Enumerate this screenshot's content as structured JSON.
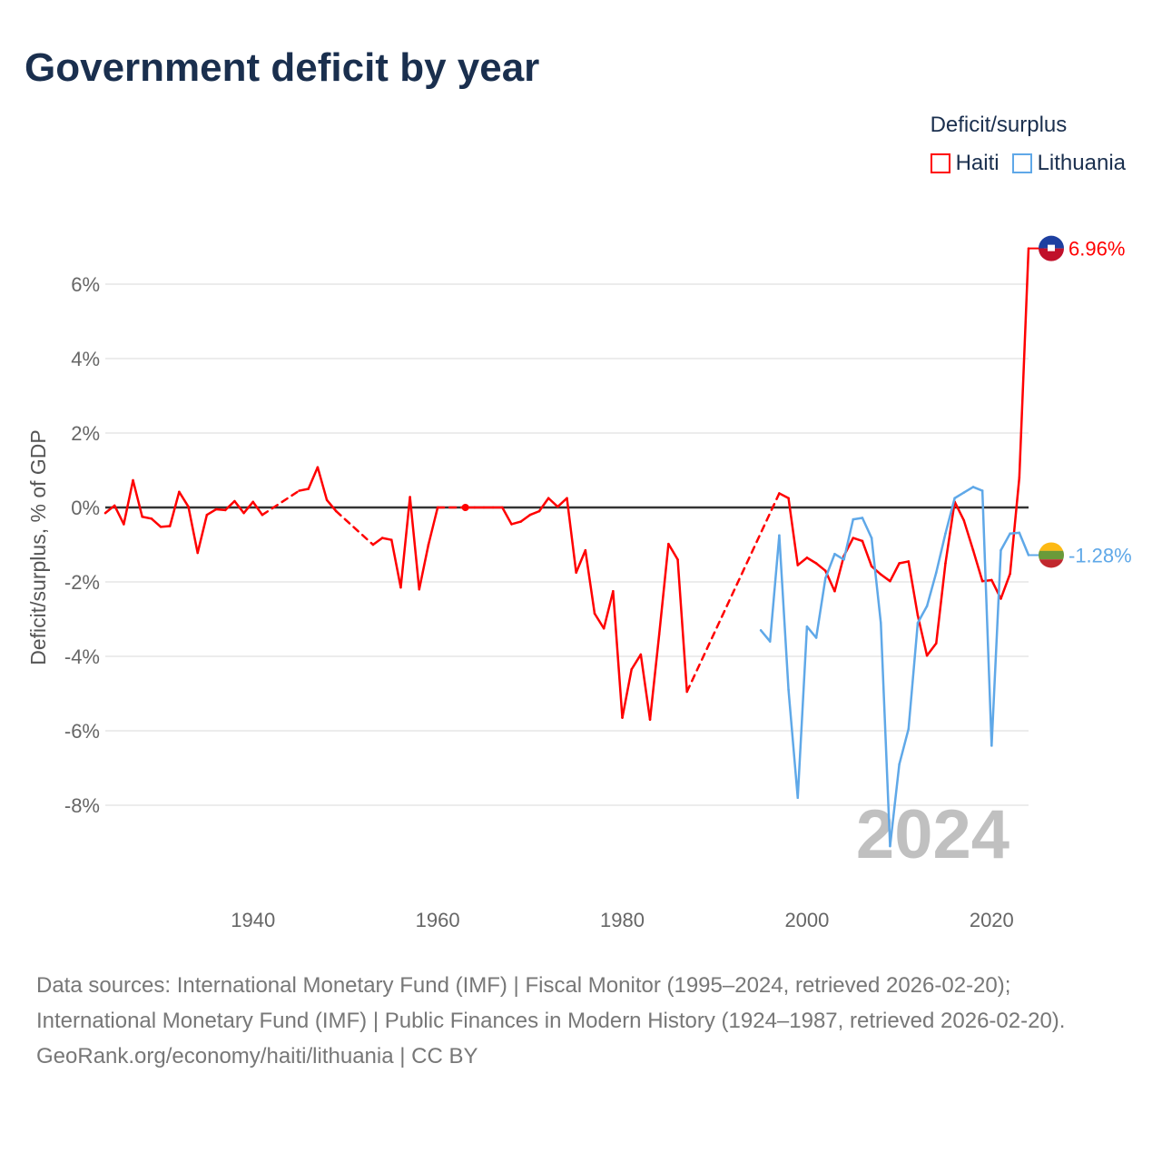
{
  "chart_data": {
    "type": "line",
    "title": "Government deficit by year",
    "ylabel": "Deficit/surplus, % of GDP",
    "xlabel": "",
    "ylim": [
      -10,
      7.2
    ],
    "xlim": [
      1924,
      2024
    ],
    "yticks": [
      6,
      4,
      2,
      0,
      -2,
      -4,
      -6,
      -8
    ],
    "ytick_labels": [
      "6%",
      "4%",
      "2%",
      "0%",
      "-2%",
      "-4%",
      "-6%",
      "-8%"
    ],
    "xticks": [
      1940,
      1960,
      1980,
      2000,
      2020
    ],
    "xtick_labels": [
      "1940",
      "1960",
      "1980",
      "2000",
      "2020"
    ],
    "legend_title": "Deficit/surplus",
    "legend_placement": "top-right",
    "year_watermark": "2024",
    "series": [
      {
        "name": "Haiti",
        "color": "#ff0000",
        "end_label": "6.96%",
        "x": [
          1924,
          1925,
          1926,
          1927,
          1928,
          1929,
          1930,
          1931,
          1932,
          1933,
          1934,
          1935,
          1936,
          1937,
          1938,
          1939,
          1940,
          1941,
          1945,
          1946,
          1947,
          1948,
          1949,
          1953,
          1954,
          1955,
          1956,
          1957,
          1958,
          1959,
          1960,
          1963,
          1964,
          1965,
          1966,
          1967,
          1968,
          1969,
          1970,
          1971,
          1972,
          1973,
          1974,
          1975,
          1976,
          1977,
          1978,
          1979,
          1980,
          1981,
          1982,
          1983,
          1984,
          1985,
          1986,
          1987,
          1997,
          1998,
          1999,
          2000,
          2001,
          2002,
          2003,
          2004,
          2005,
          2006,
          2007,
          2008,
          2009,
          2010,
          2011,
          2012,
          2013,
          2014,
          2015,
          2016,
          2017,
          2018,
          2019,
          2020,
          2021,
          2022,
          2023,
          2024
        ],
        "values": [
          -0.15,
          0.05,
          -0.45,
          0.73,
          -0.25,
          -0.3,
          -0.52,
          -0.5,
          0.42,
          0.02,
          -1.22,
          -0.2,
          -0.05,
          -0.07,
          0.17,
          -0.15,
          0.15,
          -0.2,
          0.45,
          0.5,
          1.08,
          0.2,
          -0.1,
          -1.0,
          -0.82,
          -0.87,
          -2.15,
          0.28,
          -2.2,
          -1.0,
          0.0,
          0.0,
          0.0,
          0.0,
          0.0,
          0.0,
          -0.45,
          -0.38,
          -0.2,
          -0.1,
          0.25,
          0.02,
          0.25,
          -1.75,
          -1.15,
          -2.85,
          -3.25,
          -2.25,
          -5.65,
          -4.35,
          -3.95,
          -5.7,
          -3.4,
          -0.98,
          -1.4,
          -4.95,
          0.38,
          0.25,
          -1.55,
          -1.35,
          -1.5,
          -1.7,
          -2.25,
          -1.3,
          -0.82,
          -0.9,
          -1.58,
          -1.8,
          -1.98,
          -1.5,
          -1.45,
          -2.9,
          -3.98,
          -3.65,
          -1.5,
          0.15,
          -0.35,
          -1.15,
          -1.98,
          -1.95,
          -2.45,
          -1.78,
          0.8,
          6.96
        ]
      },
      {
        "name": "Lithuania",
        "color": "#5fa8e8",
        "end_label": "-1.28%",
        "x": [
          1995,
          1996,
          1997,
          1998,
          1999,
          2000,
          2001,
          2002,
          2003,
          2004,
          2005,
          2006,
          2007,
          2008,
          2009,
          2010,
          2011,
          2012,
          2013,
          2014,
          2015,
          2016,
          2017,
          2018,
          2019,
          2020,
          2021,
          2022,
          2023,
          2024
        ],
        "values": [
          -3.3,
          -3.6,
          -0.75,
          -4.9,
          -7.8,
          -3.2,
          -3.5,
          -1.9,
          -1.25,
          -1.4,
          -0.32,
          -0.28,
          -0.82,
          -3.1,
          -9.1,
          -6.9,
          -5.95,
          -3.1,
          -2.65,
          -1.75,
          -0.7,
          0.25,
          0.4,
          0.55,
          0.45,
          -6.4,
          -1.15,
          -0.7,
          -0.68,
          -1.28
        ]
      }
    ]
  },
  "footer": {
    "sources": "Data sources: International Monetary Fund (IMF) | Fiscal Monitor (1995–2024, retrieved 2026-02-20); International Monetary Fund (IMF) | Public Finances in Modern History (1924–1987, retrieved 2026-02-20).",
    "link": "GeoRank.org/economy/haiti/lithuania | CC BY"
  }
}
